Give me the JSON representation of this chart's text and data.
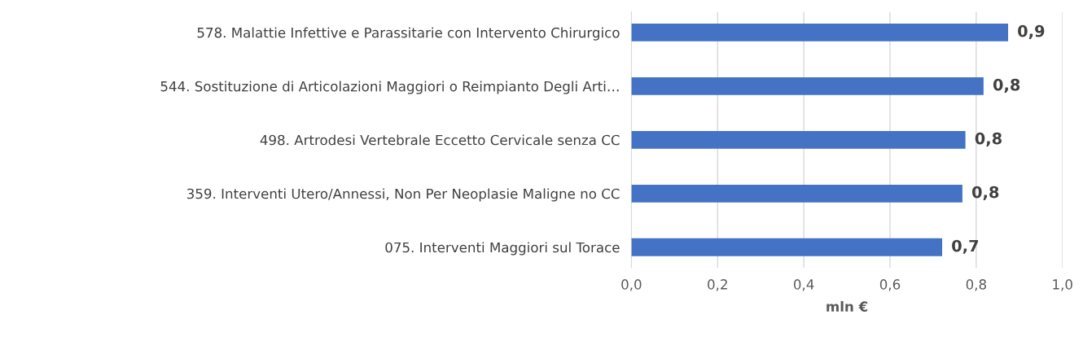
{
  "chart_data": {
    "type": "bar",
    "orientation": "horizontal",
    "xlabel": "mln €",
    "categories": [
      "578. Malattie Infettive e Parassitarie con Intervento Chirurgico",
      "544. Sostituzione di Articolazioni Maggiori o Reimpianto Degli Arti…",
      "498. Artrodesi Vertebrale Eccetto Cervicale senza CC",
      "359. Interventi Utero/Annessi, Non Per Neoplasie Maligne no CC",
      "075. Interventi Maggiori sul Torace"
    ],
    "values": [
      0.874,
      0.817,
      0.775,
      0.768,
      0.721
    ],
    "value_labels": [
      "0,9",
      "0,8",
      "0,8",
      "0,8",
      "0,7"
    ],
    "color": "#4472c4",
    "xlim": [
      0,
      1.0
    ],
    "xticks": [
      {
        "value": 0,
        "label": "0,0"
      },
      {
        "value": 0.2,
        "label": "0,2"
      },
      {
        "value": 0.4,
        "label": "0,4"
      },
      {
        "value": 0.6,
        "label": "0,6"
      },
      {
        "value": 0.8,
        "label": "0,8"
      },
      {
        "value": 1.0,
        "label": "1,0"
      }
    ],
    "grid": "x",
    "legend": false
  }
}
